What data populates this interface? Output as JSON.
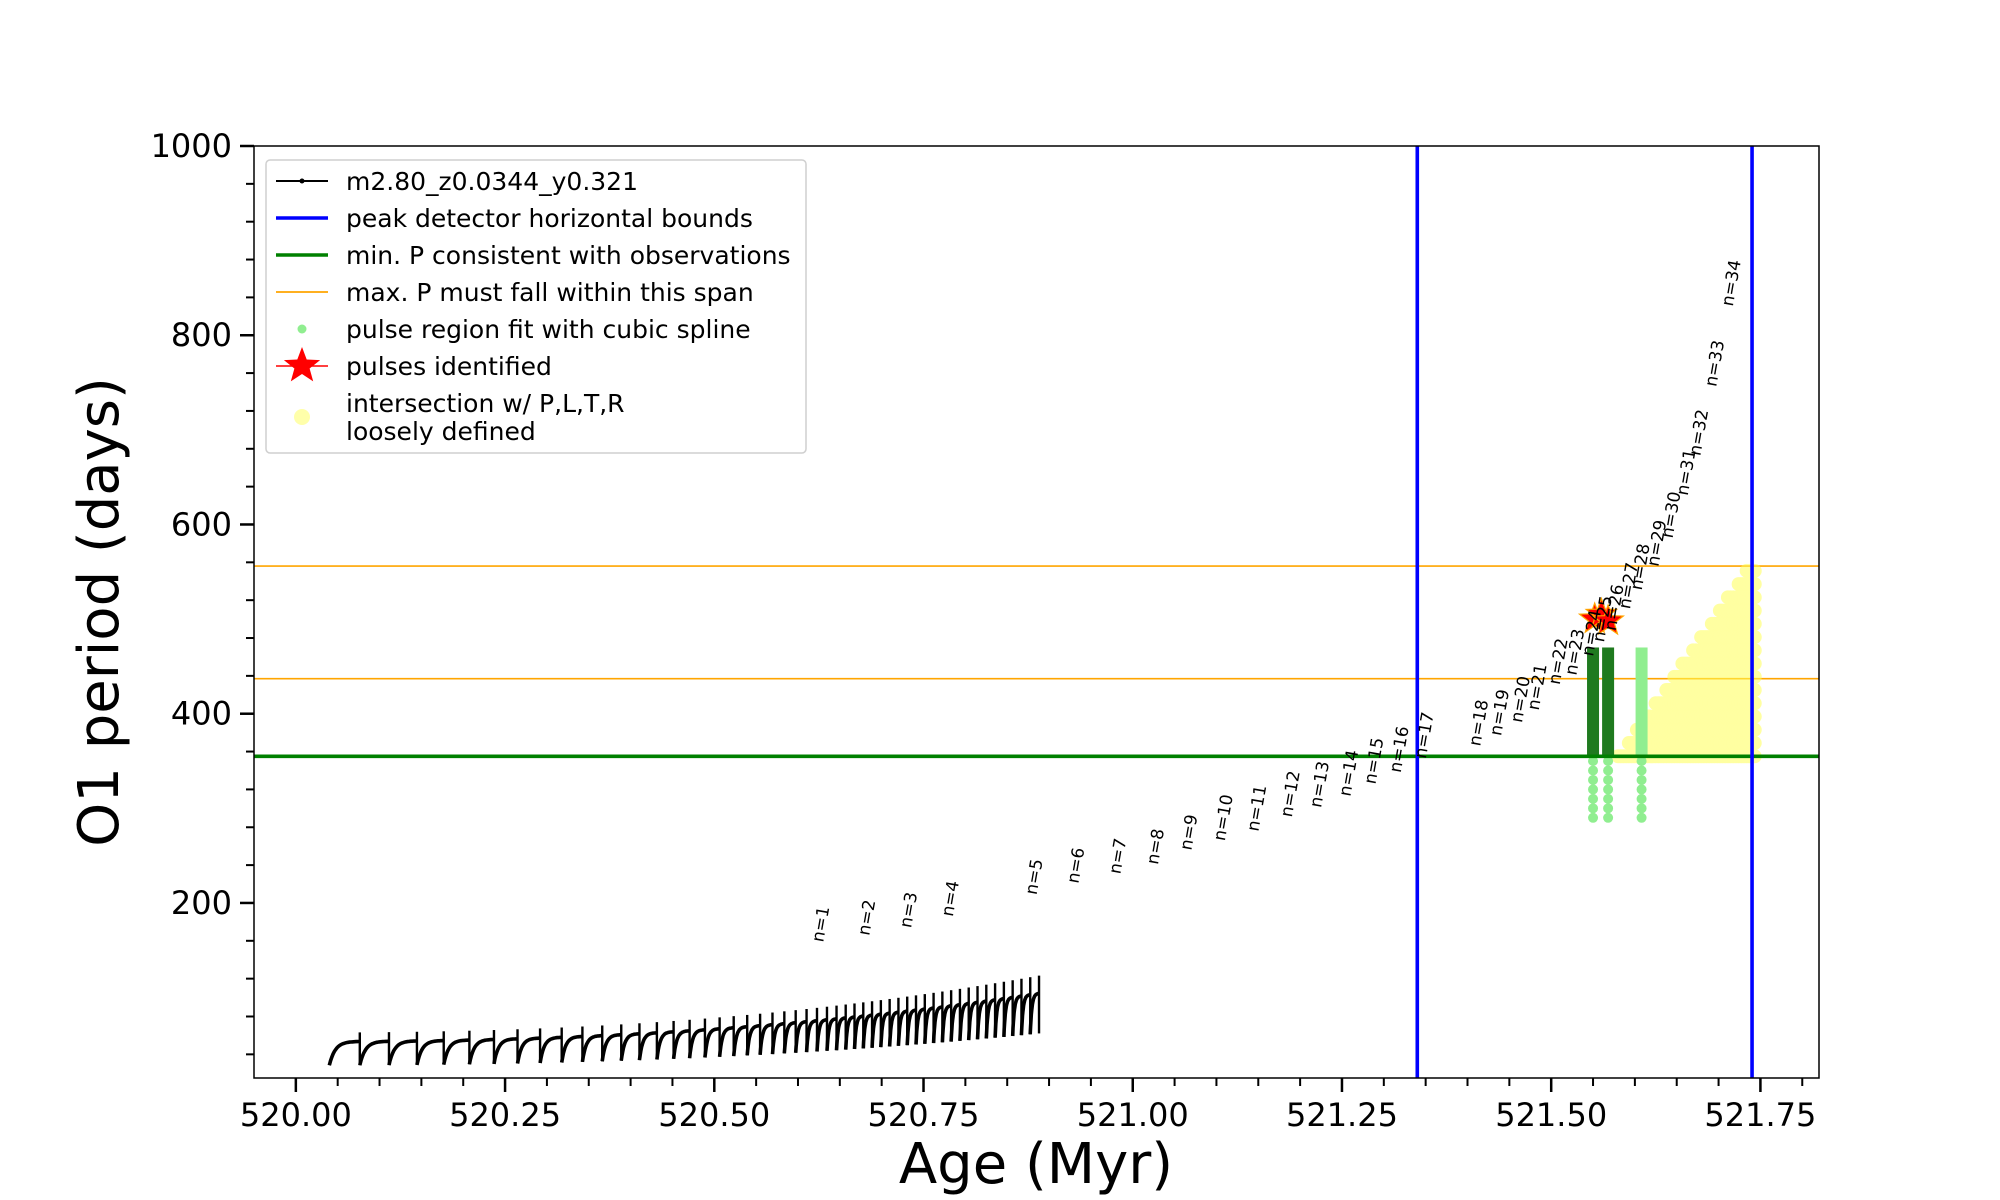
{
  "chart_data": {
    "type": "scatter",
    "xlabel": "Age (Myr)",
    "ylabel": "O1 period (days)",
    "xlim": [
      519.95,
      521.82
    ],
    "ylim": [
      15,
      1000
    ],
    "x_ticks": [
      520.0,
      520.25,
      520.5,
      520.75,
      521.0,
      521.25,
      521.5,
      521.75
    ],
    "x_tick_labels": [
      "520.00",
      "520.25",
      "520.50",
      "520.75",
      "521.00",
      "521.25",
      "521.50",
      "521.75"
    ],
    "y_ticks": [
      200,
      400,
      600,
      800,
      1000
    ],
    "y_tick_labels": [
      "200",
      "400",
      "600",
      "800",
      "1000"
    ],
    "legend_position": "upper-left",
    "legend": [
      {
        "label": "m2.80_z0.0344_y0.321",
        "color": "#000000",
        "style": "line-marker"
      },
      {
        "label": "peak detector horizontal bounds",
        "color": "#0000ff",
        "style": "line"
      },
      {
        "label": "min. P consistent with observations",
        "color": "#008000",
        "style": "line"
      },
      {
        "label": "max. P must fall within this span",
        "color": "#ffa500",
        "style": "thin-line"
      },
      {
        "label": "pulse region fit with cubic spline",
        "color": "#90ee90",
        "style": "dot"
      },
      {
        "label": "pulses identified",
        "color": "#ff0000",
        "style": "star"
      },
      {
        "label": "intersection w/ P,L,T,R",
        "label_line2": "loosely defined",
        "color": "#ffffaa",
        "style": "dot"
      }
    ],
    "vertical_lines": [
      521.34,
      521.74
    ],
    "min_period_line": 355,
    "max_period_span": [
      437,
      556
    ],
    "pulse_labels": [
      {
        "text": "n=1",
        "x": 520.63,
        "y": 158
      },
      {
        "text": "n=2",
        "x": 520.685,
        "y": 165
      },
      {
        "text": "n=3",
        "x": 520.735,
        "y": 173
      },
      {
        "text": "n=4",
        "x": 520.785,
        "y": 185
      },
      {
        "text": "n=5",
        "x": 520.885,
        "y": 208
      },
      {
        "text": "n=6",
        "x": 520.935,
        "y": 220
      },
      {
        "text": "n=7",
        "x": 520.985,
        "y": 230
      },
      {
        "text": "n=8",
        "x": 521.03,
        "y": 240
      },
      {
        "text": "n=9",
        "x": 521.07,
        "y": 255
      },
      {
        "text": "n=10",
        "x": 521.11,
        "y": 265
      },
      {
        "text": "n=11",
        "x": 521.15,
        "y": 275
      },
      {
        "text": "n=12",
        "x": 521.19,
        "y": 290
      },
      {
        "text": "n=13",
        "x": 521.225,
        "y": 300
      },
      {
        "text": "n=14",
        "x": 521.26,
        "y": 312
      },
      {
        "text": "n=15",
        "x": 521.29,
        "y": 325
      },
      {
        "text": "n=16",
        "x": 521.32,
        "y": 337
      },
      {
        "text": "n=17",
        "x": 521.35,
        "y": 352
      },
      {
        "text": "n=18",
        "x": 521.415,
        "y": 365
      },
      {
        "text": "n=19",
        "x": 521.44,
        "y": 376
      },
      {
        "text": "n=20",
        "x": 521.465,
        "y": 390
      },
      {
        "text": "n=21",
        "x": 521.485,
        "y": 403
      },
      {
        "text": "n=22",
        "x": 521.51,
        "y": 430
      },
      {
        "text": "n=23",
        "x": 521.53,
        "y": 440
      },
      {
        "text": "n=24",
        "x": 521.55,
        "y": 460
      },
      {
        "text": "n=25",
        "x": 521.563,
        "y": 475
      },
      {
        "text": "n=26",
        "x": 521.577,
        "y": 487
      },
      {
        "text": "n=27",
        "x": 521.594,
        "y": 510
      },
      {
        "text": "n=28",
        "x": 521.608,
        "y": 530
      },
      {
        "text": "n=29",
        "x": 521.628,
        "y": 555
      },
      {
        "text": "n=30",
        "x": 521.645,
        "y": 585
      },
      {
        "text": "n=31",
        "x": 521.663,
        "y": 630
      },
      {
        "text": "n=32",
        "x": 521.678,
        "y": 672
      },
      {
        "text": "n=33",
        "x": 521.697,
        "y": 745
      },
      {
        "text": "n=34",
        "x": 521.717,
        "y": 830
      }
    ],
    "pulses_identified": [
      {
        "x": 521.552,
        "y": 500
      },
      {
        "x": 521.56,
        "y": 505
      },
      {
        "x": 521.568,
        "y": 498
      }
    ],
    "green_spline_regions": [
      521.55,
      521.568,
      521.608
    ]
  }
}
